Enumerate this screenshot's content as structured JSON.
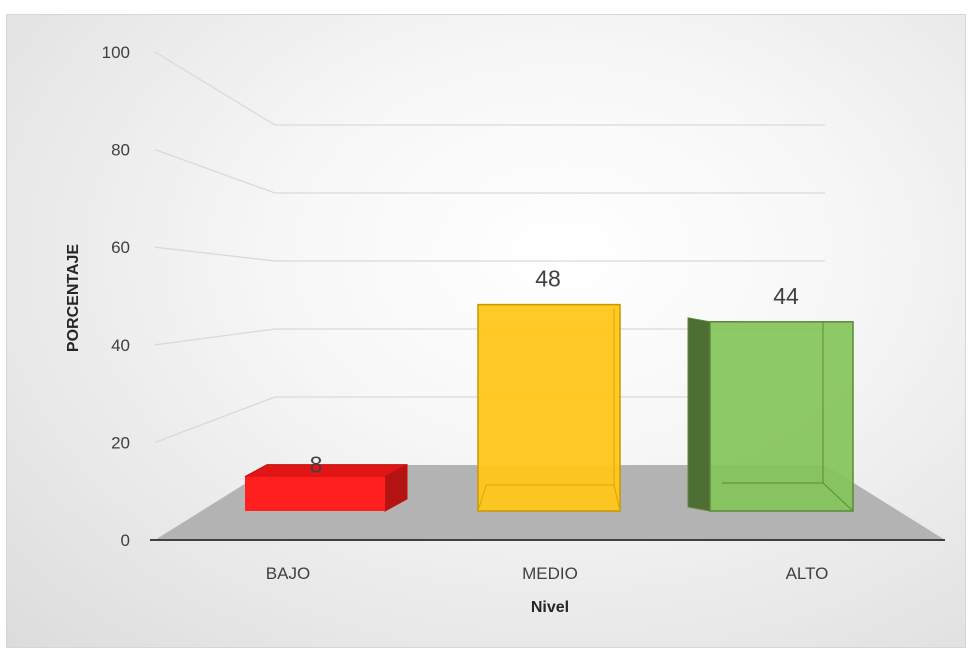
{
  "chart_data": {
    "type": "bar",
    "style": "3d-column",
    "title": "",
    "xlabel": "Nivel",
    "ylabel": "PORCENTAJE",
    "ylim": [
      0,
      100
    ],
    "yticks": [
      0,
      20,
      40,
      60,
      80,
      100
    ],
    "categories": [
      "BAJO",
      "MEDIO",
      "ALTO"
    ],
    "values": [
      8,
      48,
      44
    ],
    "data_labels": [
      "8",
      "48",
      "44"
    ],
    "grid": true,
    "legend": "none",
    "colors": [
      "#ff1f1f",
      "#ffc61a",
      "#84c45a"
    ]
  }
}
